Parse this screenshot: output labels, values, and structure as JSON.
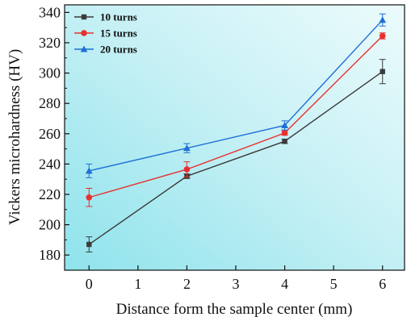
{
  "chart_data": {
    "type": "line",
    "xlabel": "Distance form the sample center (mm)",
    "ylabel": "Vickers microhardness (HV)",
    "xlim": [
      -0.5,
      6.45
    ],
    "ylim": [
      170,
      345
    ],
    "xticks": [
      0,
      1,
      2,
      3,
      4,
      5,
      6
    ],
    "yticks": [
      180,
      200,
      220,
      240,
      260,
      280,
      300,
      320,
      340
    ],
    "grid": false,
    "legend_position": "top-left",
    "series": [
      {
        "name": "10 turns",
        "color": "#3b3b3b",
        "marker": "square",
        "points": [
          {
            "x": 0,
            "y": 187,
            "err": 5
          },
          {
            "x": 2,
            "y": 232,
            "err": 1.5
          },
          {
            "x": 4,
            "y": 255,
            "err": 1.5
          },
          {
            "x": 6,
            "y": 301,
            "err": 8
          }
        ]
      },
      {
        "name": "15 turns",
        "color": "#e8312f",
        "marker": "circle",
        "points": [
          {
            "x": 0,
            "y": 218,
            "err": 6
          },
          {
            "x": 2,
            "y": 236.5,
            "err": 5
          },
          {
            "x": 4,
            "y": 260.5,
            "err": 1.5
          },
          {
            "x": 6,
            "y": 324.5,
            "err": 2
          }
        ]
      },
      {
        "name": "20 turns",
        "color": "#1f6fd6",
        "marker": "triangle",
        "points": [
          {
            "x": 0,
            "y": 235.5,
            "err": 4.5
          },
          {
            "x": 2,
            "y": 250.5,
            "err": 3
          },
          {
            "x": 4,
            "y": 265.5,
            "err": 3
          },
          {
            "x": 6,
            "y": 335,
            "err": 4
          }
        ]
      }
    ]
  }
}
